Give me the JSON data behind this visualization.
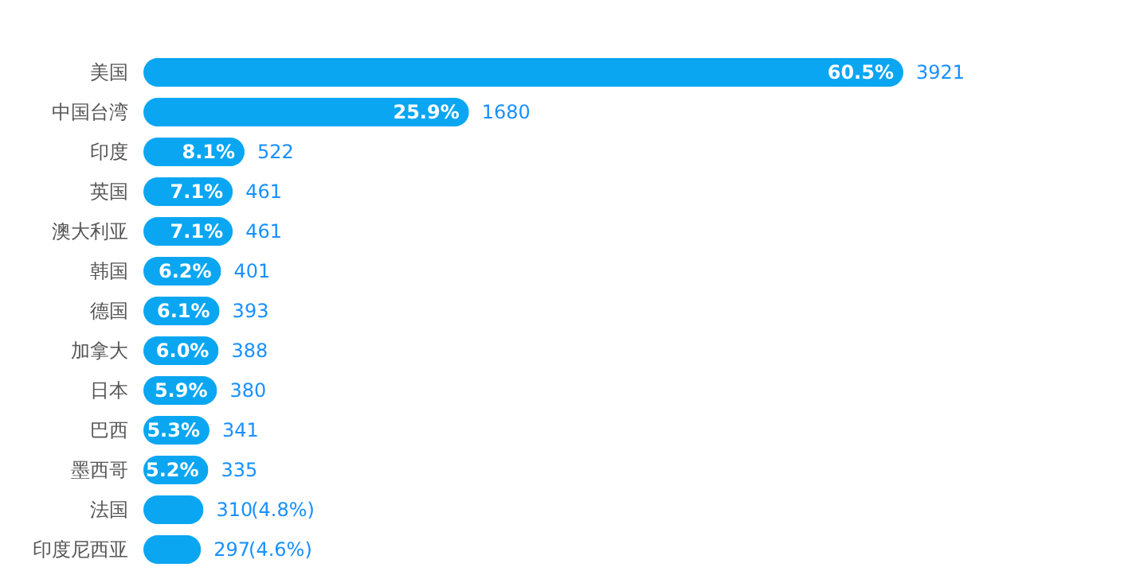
{
  "chart_data": {
    "type": "bar",
    "orientation": "horizontal",
    "tick_labels": "y",
    "categories": [
      "美国",
      "中国台湾",
      "印度",
      "英国",
      "澳大利亚",
      "韩国",
      "德国",
      "加拿大",
      "日本",
      "巴西",
      "墨西哥",
      "法国",
      "印度尼西亚"
    ],
    "series": [
      {
        "color": "#0aa6f2",
        "values": [
          3921,
          1680,
          522,
          461,
          461,
          401,
          393,
          388,
          380,
          341,
          335,
          310,
          297
        ]
      }
    ],
    "data_labels": true,
    "annotations": [
      {
        "text": "60.5%",
        "x": 3921,
        "y": "美国"
      },
      {
        "text": "25.9%",
        "x": 1680,
        "y": "中国台湾"
      },
      {
        "text": "8.1%",
        "x": 522,
        "y": "印度"
      },
      {
        "text": "7.1%",
        "x": 461,
        "y": "英国"
      },
      {
        "text": "7.1%",
        "x": 461,
        "y": "澳大利亚"
      },
      {
        "text": "6.2%",
        "x": 401,
        "y": "韩国"
      },
      {
        "text": "6.1%",
        "x": 393,
        "y": "德国"
      },
      {
        "text": "6.0%",
        "x": 388,
        "y": "加拿大"
      },
      {
        "text": "5.9%",
        "x": 380,
        "y": "日本"
      },
      {
        "text": "5.3%",
        "x": 341,
        "y": "巴西"
      },
      {
        "text": "5.2%",
        "x": 335,
        "y": "墨西哥"
      },
      {
        "text": "(4.8%)",
        "x": 310,
        "y": "法国"
      },
      {
        "text": "(4.6%)",
        "x": 297,
        "y": "印度尼西亚"
      }
    ]
  }
}
